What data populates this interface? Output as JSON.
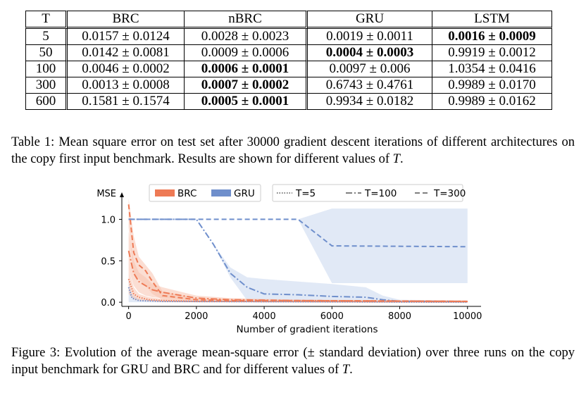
{
  "table": {
    "header": [
      "T",
      "BRC",
      "nBRC",
      "GRU",
      "LSTM"
    ],
    "rows": [
      {
        "T": "5",
        "cells": [
          {
            "text": "0.0157 ± 0.0124",
            "bold": false
          },
          {
            "text": "0.0028 ± 0.0023",
            "bold": false
          },
          {
            "text": "0.0019 ± 0.0011",
            "bold": false
          },
          {
            "text": "0.0016 ± 0.0009",
            "bold": true
          }
        ]
      },
      {
        "T": "50",
        "cells": [
          {
            "text": "0.0142 ± 0.0081",
            "bold": false
          },
          {
            "text": "0.0009 ± 0.0006",
            "bold": false
          },
          {
            "text": "0.0004 ± 0.0003",
            "bold": true
          },
          {
            "text": "0.9919 ± 0.0012",
            "bold": false
          }
        ]
      },
      {
        "T": "100",
        "cells": [
          {
            "text": "0.0046 ± 0.0002",
            "bold": false
          },
          {
            "text": "0.0006 ± 0.0001",
            "bold": true
          },
          {
            "text": "0.0097 ± 0.006",
            "bold": false
          },
          {
            "text": "1.0354 ± 0.0416",
            "bold": false
          }
        ]
      },
      {
        "T": "300",
        "cells": [
          {
            "text": "0.0013 ± 0.0008",
            "bold": false
          },
          {
            "text": "0.0007 ± 0.0002",
            "bold": true
          },
          {
            "text": "0.6743 ± 0.4761",
            "bold": false
          },
          {
            "text": "0.9989 ± 0.0170",
            "bold": false
          }
        ]
      },
      {
        "T": "600",
        "cells": [
          {
            "text": "0.1581 ± 0.1574",
            "bold": false
          },
          {
            "text": "0.0005 ± 0.0001",
            "bold": true
          },
          {
            "text": "0.9934 ± 0.0182",
            "bold": false
          },
          {
            "text": "0.9989 ± 0.0162",
            "bold": false
          }
        ]
      }
    ]
  },
  "table_caption": {
    "prefix": "Table 1: Mean square error on test set after 30000 gradient descent iterations of different architectures on the copy first input benchmark. Results are shown for different values of ",
    "var": "T",
    "suffix": "."
  },
  "figure_caption": {
    "prefix": "Figure 3: Evolution of the average mean-square error (± standard deviation) over three runs on the copy input benchmark for GRU and BRC and for different values of ",
    "var": "T",
    "suffix": "."
  },
  "colors": {
    "BRC": "#ee7a55",
    "GRU": "#6f8fcc",
    "BRC_band": "#f7c2ae",
    "GRU_band": "#c9d7ee"
  },
  "chart_data": {
    "type": "line",
    "xlabel": "Number of gradient iterations",
    "ylabel": "MSE",
    "xlim": [
      -200,
      10400
    ],
    "ylim": [
      -0.05,
      1.25
    ],
    "xticks": [
      0,
      2000,
      4000,
      6000,
      8000,
      10000
    ],
    "xtick_labels": [
      "0",
      "2000",
      "4000",
      "6000",
      "8000",
      "10000"
    ],
    "yticks": [
      0.0,
      0.5,
      1.0
    ],
    "ytick_labels": [
      "0.0",
      "0.5",
      "1.0"
    ],
    "legend_models": [
      {
        "label": "BRC",
        "model": "BRC"
      },
      {
        "label": "GRU",
        "model": "GRU"
      }
    ],
    "legend_styles": [
      {
        "label": "T=5",
        "style": "dotted"
      },
      {
        "label": "T=100",
        "style": "dashdot"
      },
      {
        "label": "T=300",
        "style": "dashed"
      }
    ],
    "legend_position": "top",
    "series": [
      {
        "model": "GRU",
        "style": "dashed",
        "x": [
          0,
          100,
          4000,
          5000,
          6000,
          10000
        ],
        "y": [
          1.0,
          1.0,
          1.0,
          1.0,
          0.68,
          0.67
        ],
        "band_lo": [
          1.0,
          1.0,
          1.0,
          1.0,
          0.23,
          0.23
        ],
        "band_hi": [
          1.0,
          1.0,
          1.0,
          1.0,
          1.13,
          1.13
        ]
      },
      {
        "model": "GRU",
        "style": "dashdot",
        "x": [
          0,
          100,
          2000,
          2500,
          3000,
          3500,
          4000,
          5000,
          6000,
          7000,
          7500,
          8000,
          10000
        ],
        "y": [
          1.0,
          1.0,
          1.0,
          0.7,
          0.35,
          0.18,
          0.1,
          0.09,
          0.07,
          0.06,
          0.03,
          0.01,
          0.01
        ],
        "band_lo": [
          1.0,
          1.0,
          1.0,
          0.7,
          0.3,
          0.02,
          0.01,
          0.01,
          0.01,
          0.01,
          0.01,
          0.005,
          0.005
        ],
        "band_hi": [
          1.0,
          1.0,
          1.0,
          0.7,
          0.42,
          0.3,
          0.28,
          0.25,
          0.22,
          0.18,
          0.08,
          0.03,
          0.02
        ]
      },
      {
        "model": "GRU",
        "style": "dotted",
        "x": [
          0,
          100,
          300,
          1000,
          10000
        ],
        "y": [
          0.18,
          0.05,
          0.02,
          0.01,
          0.0
        ],
        "band_lo": [
          0.0,
          0.0,
          0.0,
          0.0,
          0.0
        ],
        "band_hi": [
          0.3,
          0.1,
          0.04,
          0.02,
          0.01
        ]
      },
      {
        "model": "BRC",
        "style": "dashed",
        "x": [
          0,
          150,
          300,
          500,
          700,
          1000,
          2000,
          3000,
          5000,
          10000
        ],
        "y": [
          1.18,
          0.6,
          0.45,
          0.38,
          0.25,
          0.08,
          0.03,
          0.02,
          0.02,
          0.01
        ],
        "band_lo": [
          0.9,
          0.35,
          0.28,
          0.2,
          0.1,
          0.03,
          0.01,
          0.01,
          0.0,
          0.0
        ],
        "band_hi": [
          1.25,
          0.8,
          0.55,
          0.45,
          0.35,
          0.13,
          0.05,
          0.04,
          0.03,
          0.02
        ]
      },
      {
        "model": "BRC",
        "style": "dashdot",
        "x": [
          0,
          150,
          300,
          500,
          700,
          1000,
          2000,
          3000,
          5000,
          10000
        ],
        "y": [
          0.62,
          0.35,
          0.25,
          0.2,
          0.15,
          0.12,
          0.05,
          0.03,
          0.02,
          0.01
        ],
        "band_lo": [
          0.4,
          0.2,
          0.12,
          0.08,
          0.06,
          0.05,
          0.02,
          0.01,
          0.01,
          0.0
        ],
        "band_hi": [
          0.85,
          0.5,
          0.36,
          0.3,
          0.22,
          0.18,
          0.08,
          0.05,
          0.03,
          0.02
        ]
      },
      {
        "model": "BRC",
        "style": "dotted",
        "x": [
          0,
          150,
          300,
          600,
          1000,
          2000,
          10000
        ],
        "y": [
          0.28,
          0.1,
          0.06,
          0.03,
          0.02,
          0.01,
          0.005
        ],
        "band_lo": [
          0.1,
          0.03,
          0.02,
          0.01,
          0.0,
          0.0,
          0.0
        ],
        "band_hi": [
          0.4,
          0.18,
          0.1,
          0.06,
          0.04,
          0.02,
          0.01
        ]
      }
    ]
  }
}
